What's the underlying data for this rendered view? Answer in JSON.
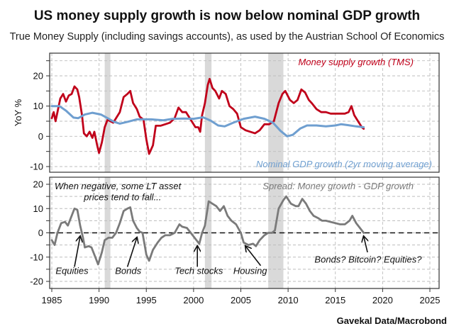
{
  "header": {
    "title": "US money supply growth is now below nominal GDP growth",
    "subtitle": "True Money Supply (including savings accounts), as used by the Austrian School Of Economics",
    "source": "Gavekal Data/Macrobond"
  },
  "colors": {
    "money_supply": "#c0001a",
    "gdp": "#6f9fd0",
    "spread": "#7a7a7a",
    "recession": "#d9d9d9",
    "grid": "#bdbdbd"
  },
  "chart_data": [
    {
      "type": "line",
      "panel": "top",
      "title": "US money supply growth is now below nominal GDP growth",
      "ylabel": "YoY %",
      "xlim": [
        1985,
        2026
      ],
      "ylim": [
        -13,
        27
      ],
      "yticks": [
        20,
        10,
        0,
        -10
      ],
      "grid": true,
      "recessions": [
        [
          1990.6,
          1991.2
        ],
        [
          2001.2,
          2001.9
        ],
        [
          2007.9,
          2009.5
        ]
      ],
      "series": [
        {
          "name": "Money supply growth (TMS)",
          "color_key": "money_supply",
          "legend_position": "top-right",
          "points": [
            [
              1985.0,
              6
            ],
            [
              1985.2,
              8
            ],
            [
              1985.4,
              5
            ],
            [
              1985.6,
              8
            ],
            [
              1985.9,
              12.5
            ],
            [
              1986.2,
              14
            ],
            [
              1986.5,
              11.5
            ],
            [
              1986.8,
              13.5
            ],
            [
              1987.1,
              14
            ],
            [
              1987.4,
              16.5
            ],
            [
              1987.7,
              15.5
            ],
            [
              1987.9,
              13
            ],
            [
              1988.2,
              7
            ],
            [
              1988.4,
              1
            ],
            [
              1988.7,
              0
            ],
            [
              1989.0,
              1.5
            ],
            [
              1989.3,
              -0.5
            ],
            [
              1989.5,
              1.5
            ],
            [
              1989.8,
              -3
            ],
            [
              1990.0,
              -5.5
            ],
            [
              1990.3,
              -2
            ],
            [
              1990.6,
              3
            ],
            [
              1990.9,
              5.5
            ],
            [
              1991.2,
              5
            ],
            [
              1991.5,
              4.5
            ],
            [
              1991.8,
              6
            ],
            [
              1992.2,
              8
            ],
            [
              1992.6,
              13
            ],
            [
              1993.0,
              14
            ],
            [
              1993.3,
              15
            ],
            [
              1993.6,
              11
            ],
            [
              1994.0,
              9
            ],
            [
              1994.3,
              6.5
            ],
            [
              1994.7,
              5.5
            ],
            [
              1995.0,
              -1
            ],
            [
              1995.3,
              -5.8
            ],
            [
              1995.7,
              -3
            ],
            [
              1996.0,
              3.5
            ],
            [
              1996.5,
              3.5
            ],
            [
              1997.0,
              4
            ],
            [
              1997.5,
              4.5
            ],
            [
              1998.0,
              6
            ],
            [
              1998.4,
              9.5
            ],
            [
              1998.8,
              8
            ],
            [
              1999.2,
              8
            ],
            [
              1999.5,
              6.5
            ],
            [
              1999.8,
              5
            ],
            [
              2000.2,
              3
            ],
            [
              2000.5,
              3
            ],
            [
              2000.7,
              1.5
            ],
            [
              2000.9,
              7
            ],
            [
              2001.2,
              11
            ],
            [
              2001.5,
              17
            ],
            [
              2001.7,
              19
            ],
            [
              2002.0,
              16
            ],
            [
              2002.3,
              15
            ],
            [
              2002.7,
              12.5
            ],
            [
              2003.0,
              15
            ],
            [
              2003.4,
              14
            ],
            [
              2003.8,
              10
            ],
            [
              2004.2,
              9
            ],
            [
              2004.6,
              7.5
            ],
            [
              2005.0,
              3
            ],
            [
              2005.5,
              2
            ],
            [
              2006.0,
              1.5
            ],
            [
              2006.5,
              1
            ],
            [
              2007.0,
              2
            ],
            [
              2007.5,
              4
            ],
            [
              2008.0,
              4
            ],
            [
              2008.5,
              5
            ],
            [
              2009.0,
              11
            ],
            [
              2009.4,
              14
            ],
            [
              2009.7,
              15
            ],
            [
              2010.2,
              12
            ],
            [
              2010.6,
              11
            ],
            [
              2011.0,
              12
            ],
            [
              2011.4,
              15.5
            ],
            [
              2011.8,
              14.5
            ],
            [
              2012.2,
              12
            ],
            [
              2012.5,
              11
            ],
            [
              2013.0,
              9
            ],
            [
              2013.5,
              8
            ],
            [
              2014.0,
              8
            ],
            [
              2014.5,
              7.5
            ],
            [
              2015.0,
              7.5
            ],
            [
              2015.5,
              7.5
            ],
            [
              2016.0,
              7.5
            ],
            [
              2016.4,
              8
            ],
            [
              2016.7,
              10
            ],
            [
              2017.0,
              7
            ],
            [
              2017.4,
              5
            ],
            [
              2017.8,
              3
            ],
            [
              2018.0,
              2.5
            ]
          ]
        },
        {
          "name": "Nominal GDP growth (2yr moving average)",
          "color_key": "gdp",
          "legend_position": "bottom-right",
          "points": [
            [
              1985.0,
              10
            ],
            [
              1985.8,
              10
            ],
            [
              1986.5,
              8.5
            ],
            [
              1987.3,
              6.2
            ],
            [
              1987.8,
              6.0
            ],
            [
              1988.5,
              7.2
            ],
            [
              1989.3,
              7.8
            ],
            [
              1990.2,
              7.2
            ],
            [
              1990.9,
              6
            ],
            [
              1991.6,
              4.8
            ],
            [
              1992.2,
              4.2
            ],
            [
              1993.0,
              4.8
            ],
            [
              1994.0,
              5.6
            ],
            [
              1995.5,
              5.6
            ],
            [
              1996.8,
              5.3
            ],
            [
              1997.8,
              5.8
            ],
            [
              1999.0,
              5.9
            ],
            [
              2000.0,
              5.8
            ],
            [
              2001.0,
              6.3
            ],
            [
              2001.8,
              5.2
            ],
            [
              2002.6,
              3.6
            ],
            [
              2003.3,
              3.3
            ],
            [
              2004.2,
              4.5
            ],
            [
              2005.3,
              5.8
            ],
            [
              2006.5,
              6.5
            ],
            [
              2007.5,
              5.8
            ],
            [
              2008.4,
              4.5
            ],
            [
              2009.2,
              1.8
            ],
            [
              2009.9,
              0
            ],
            [
              2010.5,
              0.5
            ],
            [
              2011.3,
              2.6
            ],
            [
              2012.0,
              3.6
            ],
            [
              2013.0,
              3.6
            ],
            [
              2014.0,
              3.3
            ],
            [
              2015.0,
              3.6
            ],
            [
              2015.6,
              4.0
            ],
            [
              2016.3,
              3.7
            ],
            [
              2017.2,
              3.3
            ],
            [
              2018.0,
              3.0
            ]
          ]
        }
      ]
    },
    {
      "type": "line",
      "panel": "bottom",
      "xlim": [
        1985,
        2026
      ],
      "ylim": [
        -22,
        22
      ],
      "yticks": [
        20,
        10,
        0,
        -10,
        -20
      ],
      "xticks": [
        1985,
        1990,
        1995,
        2000,
        2005,
        2010,
        2015,
        2020,
        2025
      ],
      "grid": true,
      "zero_line": "dashed",
      "recessions": [
        [
          1990.6,
          1991.2
        ],
        [
          2001.2,
          2001.9
        ],
        [
          2007.9,
          2009.5
        ]
      ],
      "series": [
        {
          "name": "Spread: Money growth - GDP growth",
          "color_key": "spread",
          "legend_position": "top-right",
          "points": [
            [
              1985.0,
              -3
            ],
            [
              1985.3,
              -5
            ],
            [
              1985.6,
              0
            ],
            [
              1986.0,
              4
            ],
            [
              1986.4,
              4.5
            ],
            [
              1986.7,
              3
            ],
            [
              1987.0,
              6
            ],
            [
              1987.4,
              10
            ],
            [
              1987.7,
              9.5
            ],
            [
              1988.0,
              3
            ],
            [
              1988.3,
              -2
            ],
            [
              1988.5,
              -6
            ],
            [
              1988.9,
              -5.5
            ],
            [
              1989.2,
              -6
            ],
            [
              1989.5,
              -9
            ],
            [
              1989.9,
              -13
            ],
            [
              1990.3,
              -8
            ],
            [
              1990.6,
              -3
            ],
            [
              1991.0,
              -2
            ],
            [
              1991.4,
              -2
            ],
            [
              1991.8,
              0
            ],
            [
              1992.2,
              4
            ],
            [
              1992.6,
              9
            ],
            [
              1993.0,
              10
            ],
            [
              1993.3,
              10.5
            ],
            [
              1993.6,
              5
            ],
            [
              1994.0,
              2
            ],
            [
              1994.3,
              0.5
            ],
            [
              1994.6,
              0
            ],
            [
              1995.0,
              -9
            ],
            [
              1995.3,
              -11.5
            ],
            [
              1995.7,
              -7
            ],
            [
              1996.2,
              -4
            ],
            [
              1996.6,
              -2
            ],
            [
              1997.0,
              -1
            ],
            [
              1997.5,
              -1
            ],
            [
              1998.0,
              0
            ],
            [
              1998.5,
              3.5
            ],
            [
              1998.8,
              2.5
            ],
            [
              1999.3,
              2
            ],
            [
              1999.7,
              0
            ],
            [
              2000.3,
              -3
            ],
            [
              2000.6,
              -4.5
            ],
            [
              2000.9,
              0
            ],
            [
              2001.2,
              3
            ],
            [
              2001.6,
              13
            ],
            [
              2002.0,
              12
            ],
            [
              2002.4,
              11
            ],
            [
              2002.8,
              9
            ],
            [
              2003.2,
              11
            ],
            [
              2003.6,
              7
            ],
            [
              2004.0,
              5
            ],
            [
              2004.5,
              3.5
            ],
            [
              2005.0,
              0
            ],
            [
              2005.3,
              -4
            ],
            [
              2005.8,
              -5
            ],
            [
              2006.3,
              -4.5
            ],
            [
              2006.6,
              -5.5
            ],
            [
              2007.0,
              -3
            ],
            [
              2007.5,
              -1
            ],
            [
              2007.9,
              0
            ],
            [
              2008.3,
              0
            ],
            [
              2008.6,
              1
            ],
            [
              2009.0,
              10
            ],
            [
              2009.5,
              13.5
            ],
            [
              2009.8,
              15
            ],
            [
              2010.3,
              12
            ],
            [
              2010.8,
              11
            ],
            [
              2011.1,
              11
            ],
            [
              2011.5,
              14
            ],
            [
              2011.9,
              12
            ],
            [
              2012.3,
              9
            ],
            [
              2012.7,
              7
            ],
            [
              2013.2,
              6
            ],
            [
              2013.6,
              5
            ],
            [
              2014.0,
              5
            ],
            [
              2014.5,
              4.5
            ],
            [
              2015.0,
              4
            ],
            [
              2015.5,
              3.5
            ],
            [
              2016.0,
              3.5
            ],
            [
              2016.5,
              5
            ],
            [
              2016.8,
              7
            ],
            [
              2017.2,
              4
            ],
            [
              2017.6,
              2
            ],
            [
              2018.0,
              0
            ]
          ]
        }
      ],
      "annotations": [
        {
          "text": "When negative, some LT asset",
          "x": 1985.3,
          "y": 18
        },
        {
          "text": "prices tend to fall...",
          "x": 1988.4,
          "y": 13.5
        },
        {
          "text": "Equities",
          "label_x": 1985.4,
          "label_y": -17,
          "arrow_from": [
            1987.4,
            -14
          ],
          "arrow_to": [
            1988.0,
            -1.5
          ]
        },
        {
          "text": "Bonds",
          "label_x": 1991.7,
          "label_y": -17,
          "arrow_from": [
            1993.0,
            -14
          ],
          "arrow_to": [
            1994.0,
            -2
          ]
        },
        {
          "text": "Tech stocks",
          "label_x": 1998.0,
          "label_y": -17,
          "arrow_from": [
            2000.4,
            -14
          ],
          "arrow_to": [
            2000.4,
            -5.5
          ]
        },
        {
          "text": "Housing",
          "label_x": 2004.2,
          "label_y": -17,
          "arrow_from": [
            2007.1,
            -13.5
          ],
          "arrow_to": [
            2005.5,
            -5.5
          ]
        },
        {
          "text": "Bonds? Bitcoin? Equities?",
          "label_x": 2012.8,
          "label_y": -12.3,
          "arrow_from": [
            2018.4,
            -8
          ],
          "arrow_to": [
            2018.0,
            -1.5
          ]
        }
      ]
    }
  ]
}
